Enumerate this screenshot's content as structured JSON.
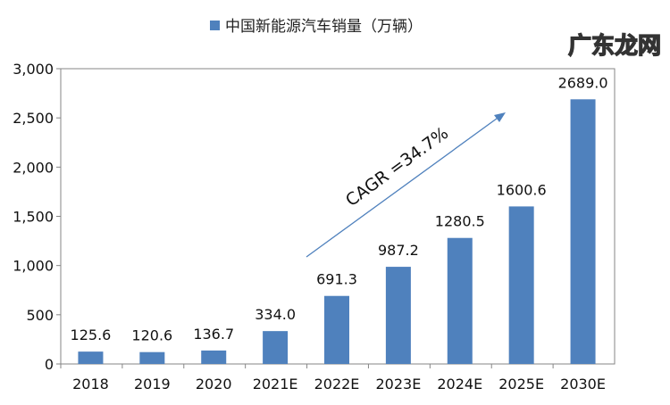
{
  "chart_data": {
    "type": "bar",
    "title": "",
    "legend": {
      "position": "top",
      "entries": [
        "中国新能源汽车销量（万辆）"
      ]
    },
    "categories": [
      "2018",
      "2019",
      "2020",
      "2021E",
      "2022E",
      "2023E",
      "2024E",
      "2025E",
      "2030E"
    ],
    "series": [
      {
        "name": "中国新能源汽车销量（万辆）",
        "values": [
          125.6,
          120.6,
          136.7,
          334.0,
          691.3,
          987.2,
          1280.5,
          1600.6,
          2689.0
        ],
        "labels": [
          "125.6",
          "120.6",
          "136.7",
          "334.0",
          "691.3",
          "987.2",
          "1280.5",
          "1600.6",
          "2689.0"
        ]
      }
    ],
    "ylim": [
      0,
      3000
    ],
    "yticks": [
      0,
      500,
      1000,
      1500,
      2000,
      2500,
      3000
    ],
    "ytick_labels": [
      "0",
      "500",
      "1,000",
      "1,500",
      "2,000",
      "2,500",
      "3,000"
    ],
    "grid": false,
    "annotation": "CAGR =34.7%",
    "colors": {
      "bar": "#4f81bd",
      "arrow": "#4f81bd",
      "axis": "#868686"
    }
  },
  "watermark": "广东龙网"
}
